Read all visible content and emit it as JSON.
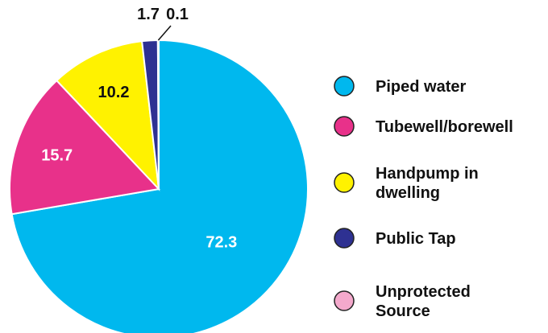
{
  "chart_data": {
    "type": "pie",
    "title": "",
    "categories": [
      "Piped water",
      "Tubewell/borewell",
      "Handpump in dwelling",
      "Public Tap",
      "Unprotected Source"
    ],
    "values": [
      72.3,
      15.7,
      10.2,
      1.7,
      0.1
    ],
    "value_labels": [
      "72.3",
      "15.7",
      "10.2",
      "1.7",
      "0.1"
    ],
    "colors": [
      "#00B8EE",
      "#E8318A",
      "#FFF200",
      "#2E3192",
      "#F4A9CC"
    ],
    "label_colors": [
      "#ffffff",
      "#ffffff",
      "#111111",
      "#111111",
      "#111111"
    ],
    "legend": [
      {
        "lines": [
          "Piped water"
        ]
      },
      {
        "lines": [
          "Tubewell/borewell"
        ]
      },
      {
        "lines": [
          "Handpump in",
          "dwelling"
        ]
      },
      {
        "lines": [
          "Public Tap"
        ]
      },
      {
        "lines": [
          "Unprotected",
          "Source"
        ]
      }
    ],
    "legend_position": "right"
  }
}
